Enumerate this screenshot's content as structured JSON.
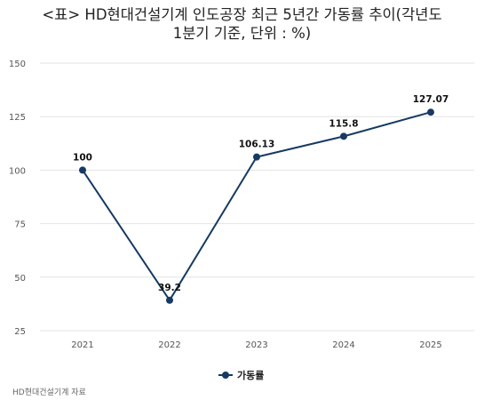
{
  "title": {
    "line1": "<표> HD현대건설기계 인도공장 최근 5년간 가동률 추이(각년도",
    "line2": "1분기 기준, 단위 : %)"
  },
  "source": "HD현대건설기계 자료",
  "colors": {
    "series": "#163a63",
    "grid": "#e3e3e3",
    "tick": "#555555",
    "label": "#111111"
  },
  "chart_data": {
    "type": "line",
    "title": "<표> HD현대건설기계 인도공장 최근 5년간 가동률 추이(각년도 1분기 기준, 단위 : %)",
    "x": [
      "2021",
      "2022",
      "2023",
      "2024",
      "2025"
    ],
    "series": [
      {
        "name": "가동률",
        "values": [
          100,
          39.2,
          106.13,
          115.8,
          127.07
        ],
        "labels": [
          "100",
          "39.2",
          "106.13",
          "115.8",
          "127.07"
        ]
      }
    ],
    "yticks": [
      25,
      50,
      75,
      100,
      125,
      150
    ],
    "ylim": [
      25,
      150
    ],
    "grid": true,
    "legend": "bottom-center",
    "xlabel": "",
    "ylabel": ""
  }
}
